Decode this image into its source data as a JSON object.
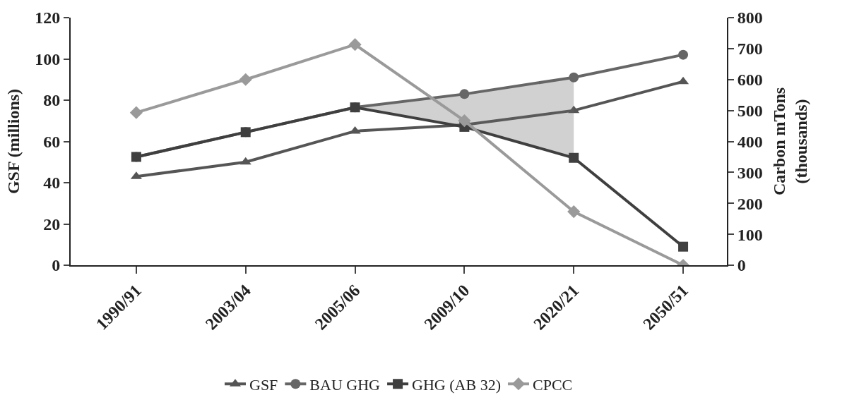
{
  "chart_data": {
    "type": "line",
    "ylabel": "GSF (millions)",
    "y2label": "Carbon mTons\n(thousands)",
    "categories": [
      "1990/91",
      "2003/04",
      "2005/06",
      "2009/10",
      "2020/21",
      "2050/51"
    ],
    "series": [
      {
        "name": "GSF",
        "color": "#555555",
        "marker": "triangle",
        "values": [
          43,
          50,
          65,
          68,
          75,
          89
        ]
      },
      {
        "name": "BAU GHG",
        "color": "#666666",
        "marker": "circle",
        "axis": "y2",
        "values": [
          350,
          430,
          510,
          553,
          607,
          680
        ],
        "lower": [
          null,
          null,
          510,
          447,
          347,
          null
        ],
        "upper": [
          null,
          null,
          510,
          553,
          607,
          null
        ]
      },
      {
        "name": "GHG (AB 32)",
        "color": "#3f3f3f",
        "marker": "square",
        "axis": "y2",
        "values": [
          350,
          430,
          510,
          447,
          347,
          60
        ]
      },
      {
        "name": "CPCC",
        "color": "#9a9a9a",
        "marker": "diamond",
        "axis": "y2",
        "values": [
          493,
          600,
          713,
          467,
          173,
          0
        ]
      }
    ],
    "ylim": [
      0,
      120
    ],
    "yticks": [
      0,
      20,
      40,
      60,
      80,
      100,
      120
    ],
    "y2lim": [
      0,
      800
    ],
    "y2ticks": [
      0,
      100,
      200,
      300,
      400,
      500,
      600,
      700,
      800
    ],
    "legend": "bottom"
  }
}
